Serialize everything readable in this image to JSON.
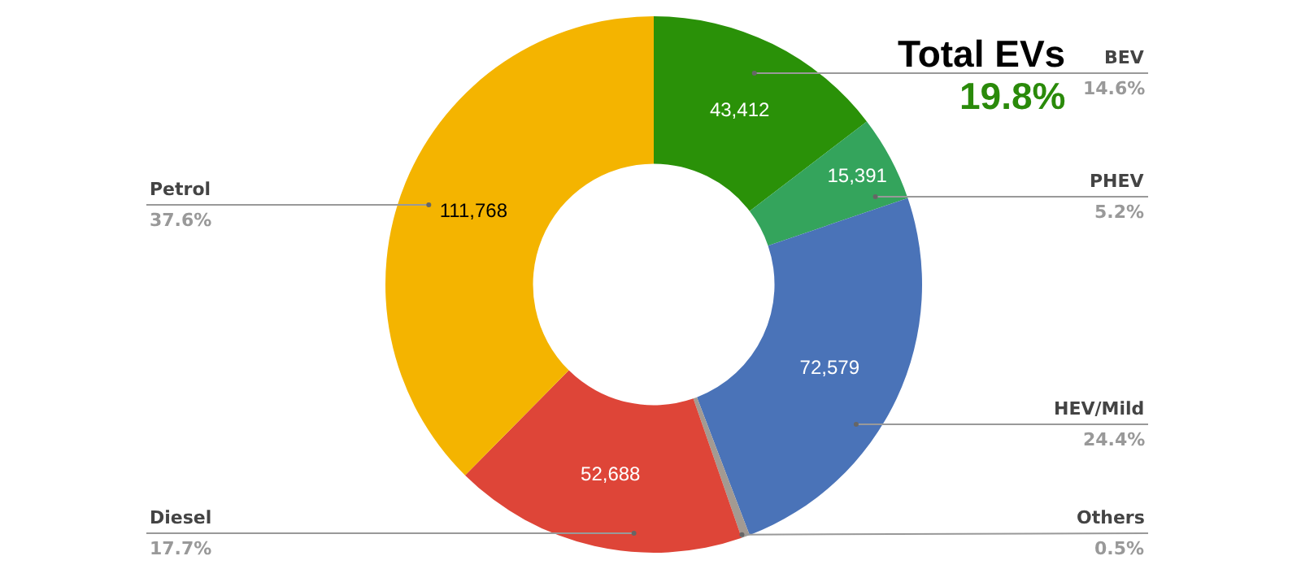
{
  "chart_data": {
    "type": "donut",
    "categories": [
      "BEV",
      "PHEV",
      "HEV/Mild",
      "Others",
      "Diesel",
      "Petrol"
    ],
    "values": [
      43412,
      15391,
      72579,
      1500,
      52688,
      111768
    ],
    "value_labels": [
      "43,412",
      "15,391",
      "72,579",
      null,
      "52,688",
      "111,768"
    ],
    "colors": [
      "#2a9108",
      "#34a45c",
      "#4a73b8",
      "#a39a92",
      "#de4538",
      "#f4b400"
    ],
    "annotations": [
      "Total EVs",
      "19.8%",
      "14.6%",
      "5.2%",
      "24.4%",
      "0.5%",
      "17.7%",
      "37.6%"
    ],
    "legend": false
  }
}
